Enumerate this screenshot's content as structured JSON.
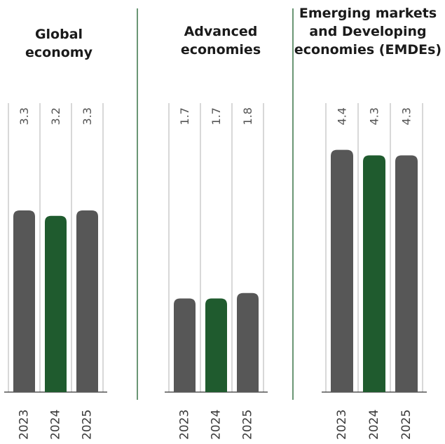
{
  "colors": {
    "bar_default": "#575757",
    "bar_highlight": "#1f5b2e",
    "divider": "#2a6a3a",
    "column_line": "#b0b0b0",
    "baseline": "#333333"
  },
  "chart_data": [
    {
      "type": "bar",
      "title": [
        "Global",
        "economy"
      ],
      "categories": [
        "2023",
        "2024",
        "2025"
      ],
      "values": [
        3.3,
        3.2,
        3.3
      ],
      "value_labels": [
        "3.3",
        "3.2",
        "3.3"
      ],
      "highlight_index": 1,
      "ylim": [
        0,
        6.0
      ],
      "grid": false,
      "legend": "none"
    },
    {
      "type": "bar",
      "title": [
        "Advanced",
        "economies"
      ],
      "categories": [
        "2023",
        "2024",
        "2025"
      ],
      "values": [
        1.7,
        1.7,
        1.8
      ],
      "value_labels": [
        "1.7",
        "1.7",
        "1.8"
      ],
      "highlight_index": 1,
      "ylim": [
        0,
        6.0
      ],
      "grid": false,
      "legend": "none"
    },
    {
      "type": "bar",
      "title": [
        "Emerging markets",
        "and Developing",
        "economies (EMDEs)"
      ],
      "categories": [
        "2023",
        "2024",
        "2025"
      ],
      "values": [
        4.4,
        4.3,
        4.3
      ],
      "value_labels": [
        "4.4",
        "4.3",
        "4.3"
      ],
      "highlight_index": 1,
      "ylim": [
        0,
        6.0
      ],
      "grid": false,
      "legend": "none"
    }
  ]
}
